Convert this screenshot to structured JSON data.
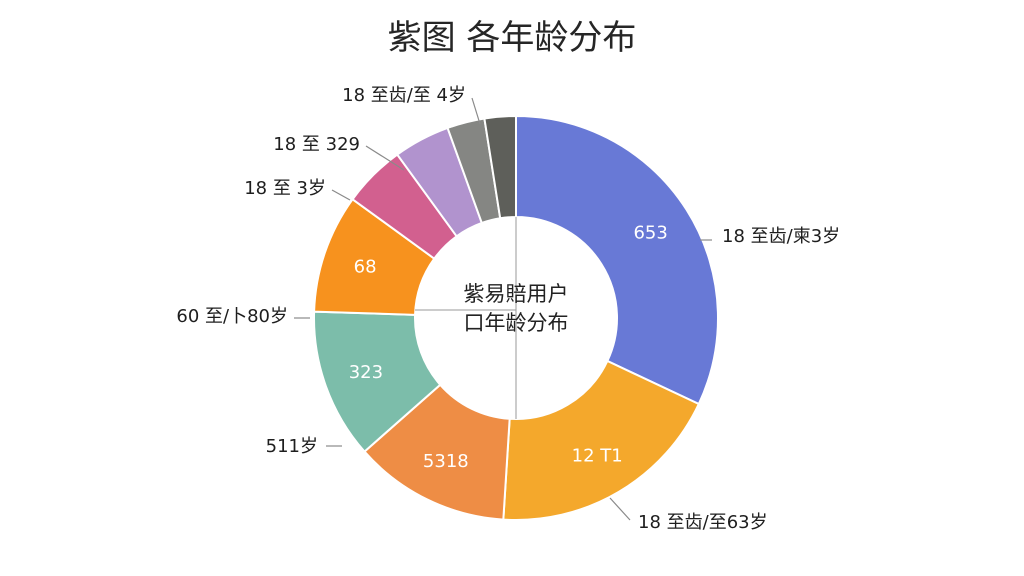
{
  "chart_data": {
    "type": "pie",
    "title": "紫图 各年龄分布",
    "center_label": [
      "紫易賠用户",
      "口年龄分布"
    ],
    "slices": [
      {
        "value": 32.0,
        "color": "#6879D6",
        "inner_label": "653",
        "outer_label": "18 至齿/柬3岁"
      },
      {
        "value": 19.0,
        "color": "#F4A82C",
        "inner_label": "12 T1",
        "outer_label": "18 至齿/至63岁"
      },
      {
        "value": 12.5,
        "color": "#EE8D45",
        "inner_label": "5318",
        "outer_label": "511岁"
      },
      {
        "value": 12.0,
        "color": "#7CBDAA",
        "inner_label": "323",
        "outer_label": "60 至/卜80岁"
      },
      {
        "value": 9.5,
        "color": "#F7921E",
        "inner_label": "68",
        "outer_label": "18 至 3岁"
      },
      {
        "value": 5.0,
        "color": "#D2608F",
        "inner_label": "",
        "outer_label": "18 至 329"
      },
      {
        "value": 4.5,
        "color": "#B193CE",
        "inner_label": "",
        "outer_label": ""
      },
      {
        "value": 3.0,
        "color": "#858683",
        "inner_label": "",
        "outer_label": "18 至齿/至 4岁"
      },
      {
        "value": 2.5,
        "color": "#5E5F5A",
        "inner_label": "",
        "outer_label": ""
      }
    ]
  }
}
